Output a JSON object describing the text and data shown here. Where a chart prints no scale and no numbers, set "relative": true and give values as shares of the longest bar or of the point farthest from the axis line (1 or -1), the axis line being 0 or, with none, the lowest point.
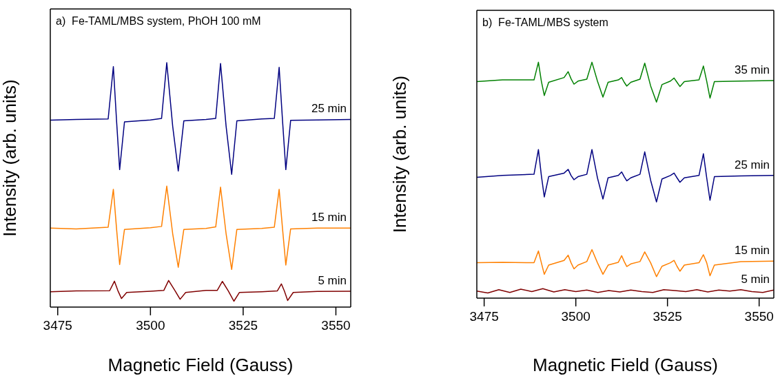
{
  "chart_data": [
    {
      "type": "line",
      "title": "a)  Fe-TAML/MBS system, PhOH 100 mM",
      "xlabel": "Magnetic Field (Gauss)",
      "ylabel": "Intensity (arb. units)",
      "relative": true,
      "xlim": [
        3473,
        3554
      ],
      "xticks": [
        3475,
        3500,
        3525,
        3550
      ],
      "series": [
        {
          "name": "25 min",
          "color": "#000080",
          "x": [
            3473,
            3480,
            3488.6,
            3490.0,
            3490.85,
            3491.7,
            3493.0,
            3500,
            3503.0,
            3504.4,
            3506.0,
            3507.5,
            3509,
            3515,
            3517.6,
            3518.9,
            3520.4,
            3521.9,
            3523.3,
            3530,
            3533.4,
            3534.7,
            3535.6,
            3536.5,
            3537.8,
            3545,
            3554
          ],
          "values": [
            0.765,
            0.768,
            0.77,
            0.984,
            0.766,
            0.5625,
            0.758,
            0.766,
            0.772,
            1.0,
            0.74,
            0.557,
            0.762,
            0.768,
            0.772,
            0.997,
            0.74,
            0.543,
            0.762,
            0.77,
            0.772,
            0.981,
            0.766,
            0.5625,
            0.764,
            0.766,
            0.768
          ]
        },
        {
          "name": "15 min",
          "color": "#ff8000",
          "x": [
            3473,
            3480,
            3488.6,
            3490.0,
            3490.85,
            3491.7,
            3493.0,
            3500,
            3503.0,
            3504.4,
            3506.0,
            3507.5,
            3509,
            3515,
            3517.6,
            3518.9,
            3520.4,
            3521.9,
            3523.3,
            3530,
            3533.4,
            3534.7,
            3535.6,
            3536.5,
            3537.8,
            3545,
            3554
          ],
          "values": [
            0.323,
            0.32,
            0.327,
            0.482,
            0.323,
            0.174,
            0.318,
            0.325,
            0.33,
            0.495,
            0.3,
            0.163,
            0.318,
            0.322,
            0.328,
            0.491,
            0.3,
            0.154,
            0.318,
            0.322,
            0.327,
            0.482,
            0.323,
            0.172,
            0.32,
            0.323,
            0.323
          ]
        },
        {
          "name": "5 min",
          "color": "#800000",
          "x": [
            3473,
            3480,
            3489.0,
            3490.3,
            3491.2,
            3492.2,
            3493.6,
            3500,
            3503.6,
            3504.9,
            3506.5,
            3508.0,
            3509.5,
            3515,
            3518.0,
            3519.4,
            3521.0,
            3522.5,
            3524,
            3530,
            3534.2,
            3535.3,
            3536.1,
            3537.0,
            3538.5,
            3545,
            3554
          ],
          "values": [
            0.063,
            0.066,
            0.067,
            0.106,
            0.068,
            0.035,
            0.06,
            0.065,
            0.068,
            0.109,
            0.07,
            0.032,
            0.06,
            0.068,
            0.068,
            0.105,
            0.066,
            0.024,
            0.06,
            0.063,
            0.066,
            0.095,
            0.066,
            0.027,
            0.06,
            0.064,
            0.065
          ]
        }
      ]
    },
    {
      "type": "line",
      "title": "b)  Fe-TAML/MBS system",
      "xlabel": "Magnetic Field (Gauss)",
      "ylabel": "Intensity (arb. units)",
      "relative": true,
      "xlim": [
        3473,
        3554
      ],
      "xticks": [
        3475,
        3500,
        3525,
        3550
      ],
      "series": [
        {
          "name": "35 min",
          "color": "#008000",
          "x": [
            3473,
            3480,
            3488.6,
            3489.8,
            3490.6,
            3491.4,
            3492.6,
            3496.8,
            3497.9,
            3498.7,
            3499.5,
            3500.6,
            3503.0,
            3504.4,
            3505.9,
            3507.4,
            3508.8,
            3511.6,
            3512.5,
            3513.2,
            3513.9,
            3515,
            3517.5,
            3518.8,
            3520.4,
            3522.0,
            3523.5,
            3525.8,
            3526.8,
            3527.6,
            3528.4,
            3529.6,
            3533.6,
            3534.8,
            3535.7,
            3536.6,
            3537.8,
            3545,
            3554
          ],
          "values": [
            0.918,
            0.925,
            0.925,
            1.0,
            0.92,
            0.859,
            0.915,
            0.935,
            0.96,
            0.93,
            0.907,
            0.92,
            0.928,
            1.0,
            0.92,
            0.852,
            0.915,
            0.925,
            0.935,
            0.915,
            0.899,
            0.915,
            0.928,
            0.996,
            0.9,
            0.831,
            0.905,
            0.92,
            0.933,
            0.915,
            0.897,
            0.918,
            0.925,
            0.984,
            0.92,
            0.848,
            0.918,
            0.92,
            0.922
          ]
        },
        {
          "name": "25 min",
          "color": "#000080",
          "x": [
            3473,
            3480,
            3488.6,
            3489.8,
            3490.6,
            3491.4,
            3492.6,
            3496.8,
            3497.9,
            3498.7,
            3499.5,
            3500.6,
            3503.0,
            3504.4,
            3505.9,
            3507.4,
            3508.8,
            3511.6,
            3512.5,
            3513.2,
            3513.9,
            3515,
            3517.5,
            3518.8,
            3520.4,
            3522.0,
            3523.5,
            3525.8,
            3526.8,
            3527.6,
            3528.4,
            3529.6,
            3533.6,
            3534.8,
            3535.7,
            3536.6,
            3537.8,
            3545,
            3554
          ],
          "values": [
            0.512,
            0.52,
            0.525,
            0.63,
            0.52,
            0.429,
            0.515,
            0.53,
            0.546,
            0.52,
            0.502,
            0.515,
            0.525,
            0.63,
            0.51,
            0.42,
            0.51,
            0.52,
            0.535,
            0.515,
            0.497,
            0.51,
            0.525,
            0.62,
            0.5,
            0.408,
            0.505,
            0.52,
            0.53,
            0.51,
            0.491,
            0.51,
            0.52,
            0.612,
            0.51,
            0.415,
            0.515,
            0.518,
            0.52
          ]
        },
        {
          "name": "15 min",
          "color": "#ff8000",
          "x": [
            3473,
            3480,
            3488.6,
            3489.8,
            3490.6,
            3491.4,
            3492.6,
            3496.8,
            3497.9,
            3498.7,
            3499.5,
            3500.6,
            3503.0,
            3504.4,
            3505.9,
            3507.4,
            3508.8,
            3511.6,
            3512.5,
            3513.2,
            3513.9,
            3515,
            3517.5,
            3518.8,
            3520.4,
            3522.0,
            3523.5,
            3525.8,
            3526.8,
            3527.6,
            3528.4,
            3529.6,
            3533.6,
            3534.8,
            3535.7,
            3536.6,
            3537.8,
            3545,
            3554
          ],
          "values": [
            0.15,
            0.152,
            0.15,
            0.2,
            0.15,
            0.101,
            0.14,
            0.16,
            0.182,
            0.15,
            0.124,
            0.14,
            0.155,
            0.206,
            0.15,
            0.101,
            0.14,
            0.152,
            0.18,
            0.155,
            0.134,
            0.145,
            0.155,
            0.196,
            0.15,
            0.091,
            0.135,
            0.15,
            0.16,
            0.135,
            0.114,
            0.14,
            0.15,
            0.184,
            0.15,
            0.095,
            0.14,
            0.155,
            0.157
          ]
        },
        {
          "name": "5 min",
          "color": "#800000",
          "x": [
            3473,
            3476,
            3479,
            3482,
            3485,
            3488,
            3491,
            3494,
            3497,
            3500,
            3503,
            3506,
            3509,
            3512,
            3515,
            3518,
            3521,
            3524,
            3527,
            3530,
            3533,
            3536,
            3539,
            3542,
            3545,
            3548,
            3551,
            3554
          ],
          "values": [
            0.03,
            0.022,
            0.036,
            0.024,
            0.038,
            0.028,
            0.04,
            0.026,
            0.036,
            0.028,
            0.034,
            0.024,
            0.032,
            0.026,
            0.034,
            0.028,
            0.024,
            0.036,
            0.032,
            0.028,
            0.036,
            0.026,
            0.034,
            0.03,
            0.036,
            0.028,
            0.024,
            0.034
          ]
        }
      ]
    }
  ]
}
